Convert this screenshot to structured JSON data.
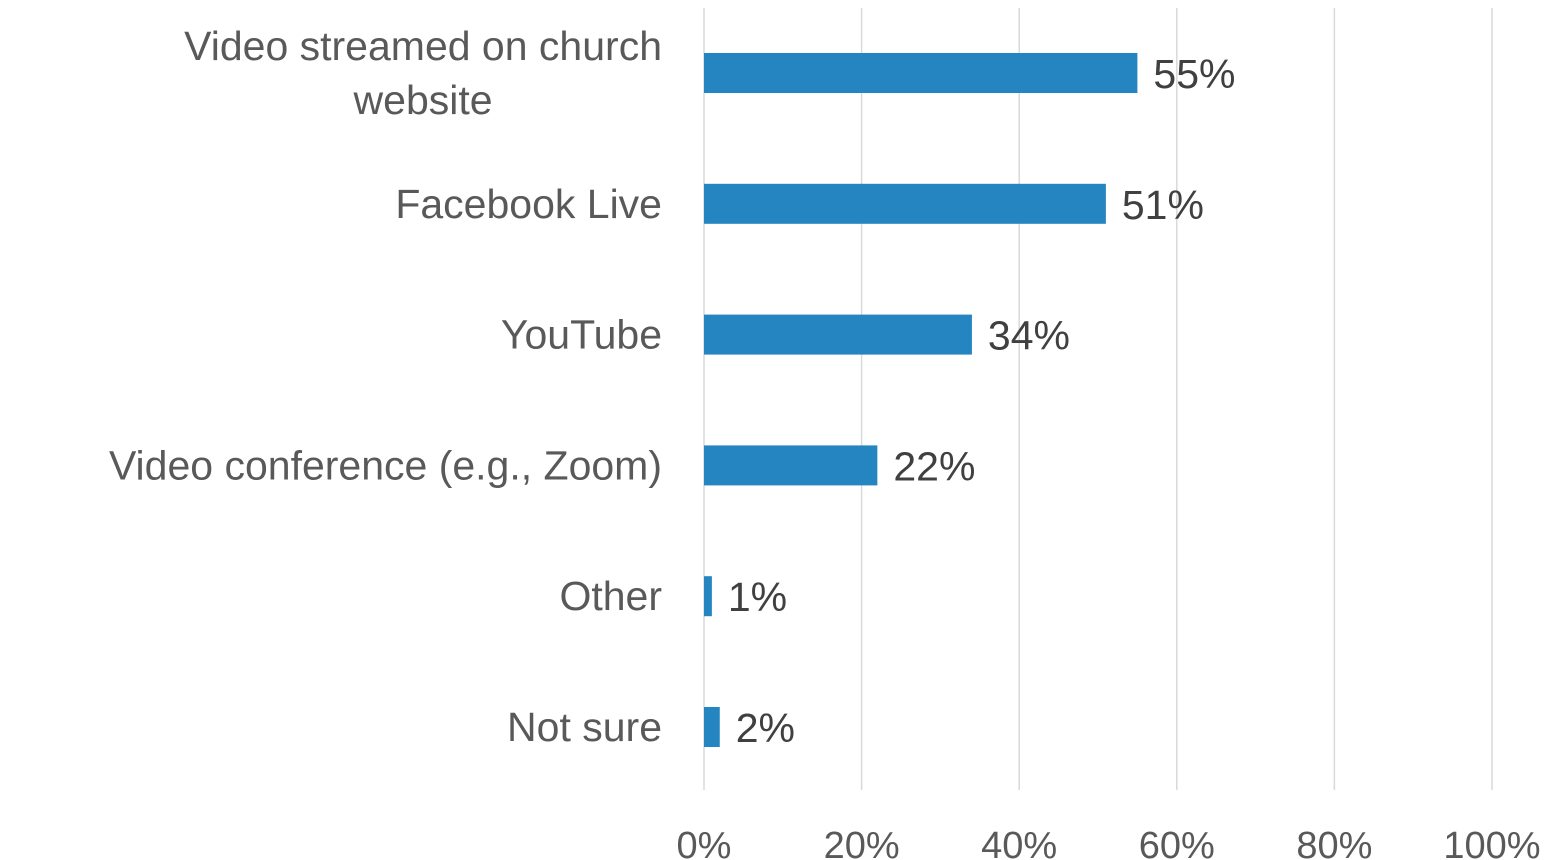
{
  "chart_data": {
    "type": "bar",
    "orientation": "horizontal",
    "categories": [
      "Video streamed on church website",
      "Facebook Live",
      "YouTube",
      "Video conference (e.g., Zoom)",
      "Other",
      "Not sure"
    ],
    "category_label_lines": [
      [
        "Video streamed on church",
        "website"
      ],
      [
        "Facebook Live"
      ],
      [
        "YouTube"
      ],
      [
        "Video conference (e.g., Zoom)"
      ],
      [
        "Other"
      ],
      [
        "Not sure"
      ]
    ],
    "values": [
      55,
      51,
      34,
      22,
      1,
      2
    ],
    "value_labels": [
      "55%",
      "51%",
      "34%",
      "22%",
      "1%",
      "2%"
    ],
    "xlim": [
      0,
      100
    ],
    "x_ticks": [
      0,
      20,
      40,
      60,
      80,
      100
    ],
    "x_tick_labels": [
      "0%",
      "20%",
      "40%",
      "60%",
      "80%",
      "100%"
    ],
    "grid": true,
    "legend": "none",
    "bar_color": "#2585c0",
    "gridline_color": "#d9d9d9",
    "text_color": "#595959"
  }
}
